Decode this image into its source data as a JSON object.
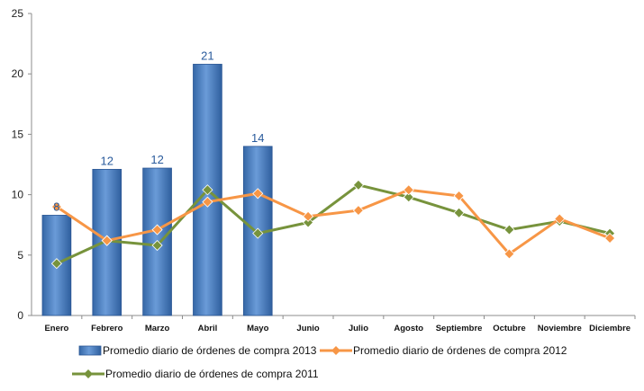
{
  "chart_data": {
    "type": "bar",
    "categories": [
      "Enero",
      "Febrero",
      "Marzo",
      "Abril",
      "Mayo",
      "Junio",
      "Julio",
      "Agosto",
      "Septiembre",
      "Octubre",
      "Noviembre",
      "Diciembre"
    ],
    "ylim": [
      0,
      25
    ],
    "yticks": [
      0,
      5,
      10,
      15,
      20,
      25
    ],
    "grid": false,
    "legend_position": "bottom",
    "series": [
      {
        "name": "Promedio diario de órdenes de compra 2013",
        "type": "bar",
        "color": "#4a7ebb",
        "values": [
          8.3,
          12.1,
          12.2,
          20.8,
          14.0,
          null,
          null,
          null,
          null,
          null,
          null,
          null
        ],
        "data_labels": [
          "8",
          "12",
          "12",
          "21",
          "14"
        ]
      },
      {
        "name": "Promedio diario de órdenes de compra 2012",
        "type": "line",
        "color": "#f79646",
        "marker": "diamond",
        "values": [
          9.0,
          6.2,
          7.1,
          9.4,
          10.1,
          8.2,
          8.7,
          10.4,
          9.9,
          5.1,
          8.0,
          6.4
        ]
      },
      {
        "name": "Promedio diario de órdenes de compra 2011",
        "type": "line",
        "color": "#77933c",
        "marker": "diamond",
        "values": [
          4.3,
          6.2,
          5.8,
          10.4,
          6.8,
          7.7,
          10.8,
          9.8,
          8.5,
          7.1,
          7.8,
          6.8
        ]
      }
    ]
  }
}
